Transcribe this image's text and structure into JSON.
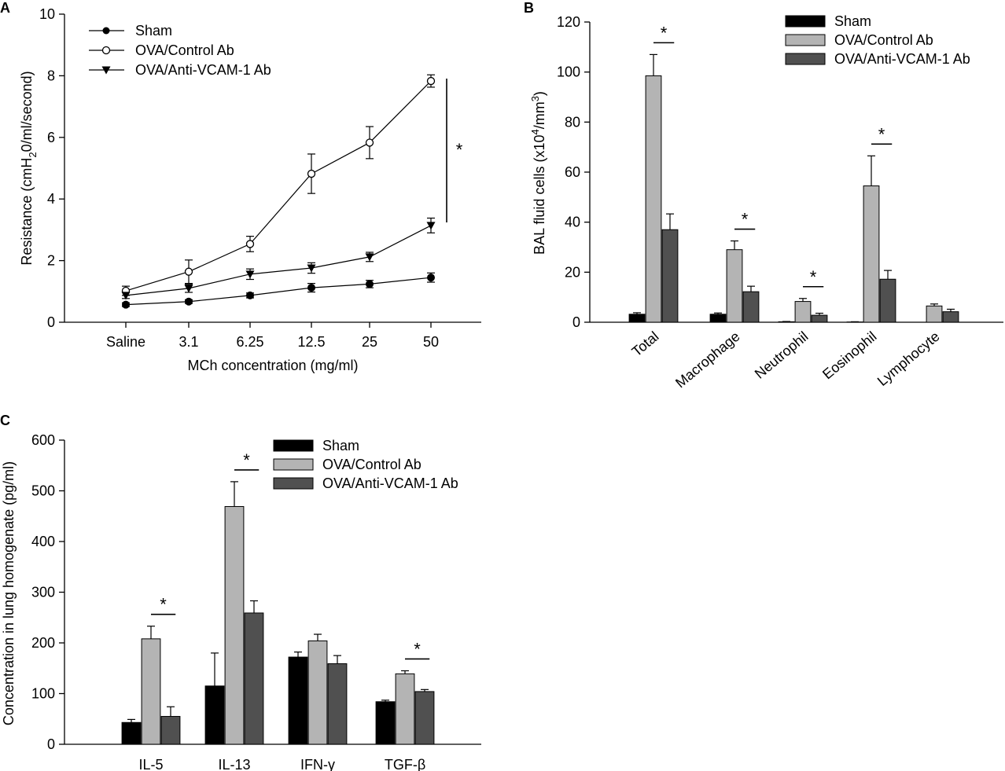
{
  "colors": {
    "sham": "#000000",
    "control": "#b4b4b4",
    "anti": "#505050",
    "edge": "#000000"
  },
  "chart_data": [
    {
      "panel": "A",
      "type": "line",
      "categories": [
        "Saline",
        "3.1",
        "6.25",
        "12.5",
        "25",
        "50"
      ],
      "xlabel": "MCh concentration (mg/ml)",
      "ylabel_parts": [
        "Resistance (cmH",
        "2",
        "0/ml/second)"
      ],
      "ylim": [
        0,
        10
      ],
      "yticks": [
        "0",
        "2",
        "4",
        "6",
        "8",
        "10"
      ],
      "legend_position": "top-left",
      "significance": "*",
      "series": [
        {
          "name": "Sham",
          "marker": "filled-circle",
          "values": [
            0.57,
            0.67,
            0.87,
            1.12,
            1.24,
            1.45
          ],
          "errors": [
            0.06,
            0.06,
            0.08,
            0.14,
            0.12,
            0.15
          ]
        },
        {
          "name": "OVA/Control Ab",
          "marker": "open-circle",
          "values": [
            1.02,
            1.64,
            2.54,
            4.82,
            5.83,
            7.83
          ],
          "errors": [
            0.15,
            0.38,
            0.25,
            0.64,
            0.52,
            0.2
          ]
        },
        {
          "name": "OVA/Anti-VCAM-1 Ab",
          "marker": "filled-triangle-down",
          "values": [
            0.87,
            1.1,
            1.56,
            1.76,
            2.12,
            3.14
          ],
          "errors": [
            0.1,
            0.13,
            0.17,
            0.17,
            0.15,
            0.24
          ]
        }
      ]
    },
    {
      "panel": "B",
      "type": "bar",
      "categories": [
        "Total",
        "Macrophage",
        "Neutrophil",
        "Eosinophil",
        "Lymphocyte"
      ],
      "ylabel_parts": [
        "BAL fluid cells (x10",
        "4",
        "/mm",
        "3",
        ")"
      ],
      "ylim": [
        0,
        120
      ],
      "yticks": [
        "0",
        "20",
        "40",
        "60",
        "80",
        "100",
        "120"
      ],
      "legend_position": "top-right",
      "significance_marks": [
        "*",
        "*",
        "*",
        "*",
        ""
      ],
      "series": [
        {
          "name": "Sham",
          "values": [
            3.2,
            3.2,
            0.2,
            0.1,
            0
          ],
          "errors": [
            0.6,
            0.5,
            0.1,
            0.1,
            0
          ]
        },
        {
          "name": "OVA/Control Ab",
          "values": [
            98.5,
            29,
            8.3,
            54.5,
            6.5
          ],
          "errors": [
            8.5,
            3.5,
            1.2,
            12,
            0.8
          ]
        },
        {
          "name": "OVA/Anti-VCAM-1 Ab",
          "values": [
            37,
            12.2,
            2.8,
            17.2,
            4.2
          ],
          "errors": [
            6.3,
            2.2,
            0.8,
            3.5,
            1
          ]
        }
      ]
    },
    {
      "panel": "C",
      "type": "bar",
      "categories": [
        "IL-5",
        "IL-13",
        "IFN-γ",
        "TGF-β"
      ],
      "ylabel": "Concentration in lung homogenate (pg/ml)",
      "ylim": [
        0,
        600
      ],
      "yticks": [
        "0",
        "100",
        "200",
        "300",
        "400",
        "500",
        "600"
      ],
      "legend_position": "top-center",
      "significance_marks": [
        "*",
        "*",
        "",
        "*"
      ],
      "series": [
        {
          "name": "Sham",
          "values": [
            43,
            115,
            172,
            84
          ],
          "errors": [
            6,
            65,
            10,
            3
          ]
        },
        {
          "name": "OVA/Control Ab",
          "values": [
            208,
            469,
            204,
            139
          ],
          "errors": [
            25,
            49,
            13,
            6
          ]
        },
        {
          "name": "OVA/Anti-VCAM-1 Ab",
          "values": [
            55,
            259,
            159,
            104
          ],
          "errors": [
            19,
            24,
            16,
            4
          ]
        }
      ]
    }
  ]
}
